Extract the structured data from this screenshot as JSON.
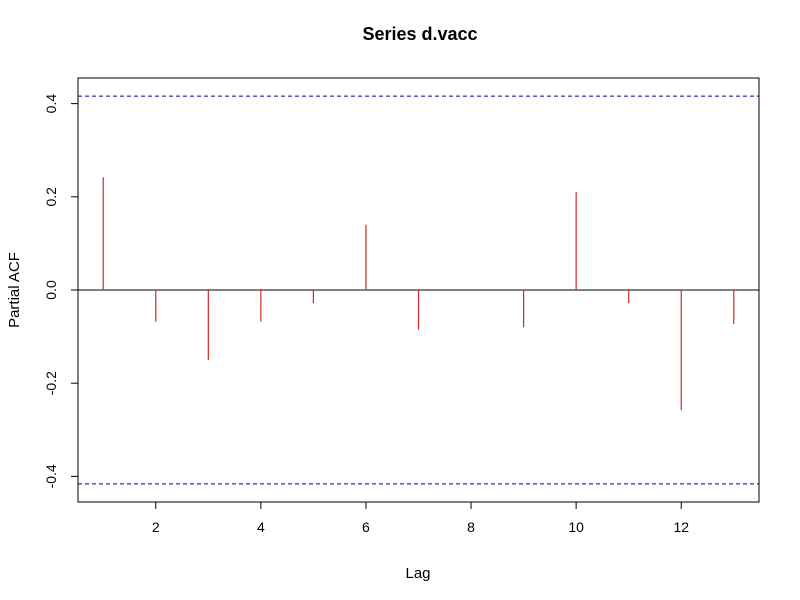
{
  "chart_data": {
    "type": "bar",
    "title": "Series  d.vacc",
    "xlabel": "Lag",
    "ylabel": "Partial ACF",
    "x": [
      1,
      2,
      3,
      4,
      5,
      6,
      7,
      8,
      9,
      10,
      11,
      12,
      13
    ],
    "values": [
      0.242,
      -0.068,
      -0.15,
      -0.068,
      -0.028,
      0.14,
      -0.085,
      0.0,
      -0.08,
      0.21,
      -0.028,
      -0.258,
      -0.073
    ],
    "xlim": [
      0.52,
      13.48
    ],
    "ylim": [
      -0.455,
      0.455
    ],
    "x_ticks": [
      2,
      4,
      6,
      8,
      10,
      12
    ],
    "y_ticks": [
      -0.4,
      -0.2,
      0.0,
      0.2,
      0.4
    ],
    "x_tick_labels": [
      "2",
      "4",
      "6",
      "8",
      "10",
      "12"
    ],
    "y_tick_labels": [
      "-0.4",
      "-0.2",
      "0.0",
      "0.2",
      "0.4"
    ],
    "confidence_bound": 0.416,
    "bar_color": "#d62728",
    "bound_color": "#00008b",
    "grid": false
  }
}
